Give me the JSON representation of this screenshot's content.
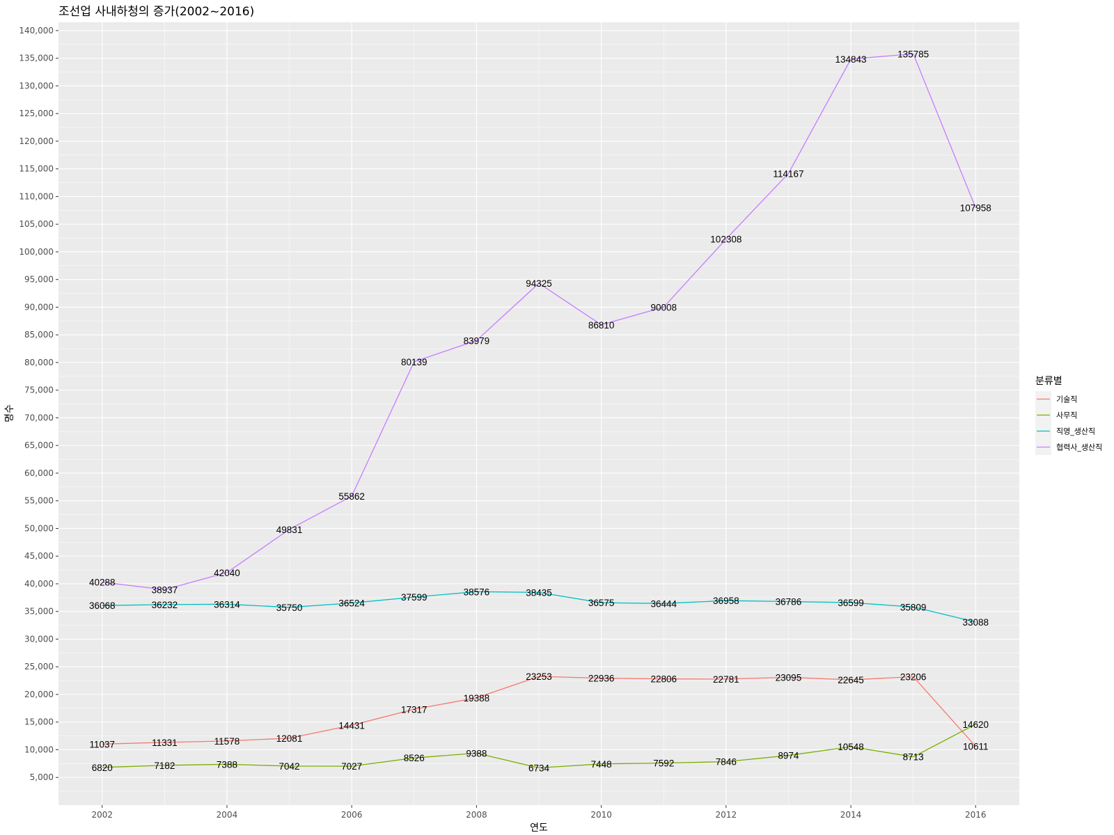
{
  "chart_data": {
    "type": "line",
    "title": "조선업 사내하청의 증가(2002~2016)",
    "xlabel": "연도",
    "ylabel": "명수",
    "x": [
      2002,
      2003,
      2004,
      2005,
      2006,
      2007,
      2008,
      2009,
      2010,
      2011,
      2012,
      2013,
      2014,
      2015,
      2016
    ],
    "xlim": [
      2001.3,
      2016.7
    ],
    "ylim": [
      0,
      141500
    ],
    "x_ticks": [
      "2002",
      "2004",
      "2006",
      "2008",
      "2010",
      "2012",
      "2014",
      "2016"
    ],
    "y_ticks": [
      "5,000",
      "10,000",
      "15,000",
      "20,000",
      "25,000",
      "30,000",
      "35,000",
      "40,000",
      "45,000",
      "50,000",
      "55,000",
      "60,000",
      "65,000",
      "70,000",
      "75,000",
      "80,000",
      "85,000",
      "90,000",
      "95,000",
      "100,000",
      "105,000",
      "110,000",
      "115,000",
      "120,000",
      "125,000",
      "130,000",
      "135,000",
      "140,000"
    ],
    "grid": true,
    "legend_title": "분류별",
    "legend_position": "right",
    "series": [
      {
        "name": "기술직",
        "color": "#F8766D",
        "values": [
          11037,
          11331,
          11578,
          12081,
          14431,
          17317,
          19388,
          23253,
          22936,
          22806,
          22781,
          23095,
          22645,
          23206,
          10611
        ]
      },
      {
        "name": "사무직",
        "color": "#7CAE00",
        "values": [
          6820,
          7182,
          7388,
          7042,
          7027,
          8526,
          9388,
          6734,
          7448,
          7592,
          7846,
          8974,
          10548,
          8713,
          14620
        ]
      },
      {
        "name": "직영_생산직",
        "color": "#00BFC4",
        "values": [
          36068,
          36232,
          36314,
          35750,
          36524,
          37599,
          38576,
          38435,
          36575,
          36444,
          36958,
          36786,
          36599,
          35809,
          33088
        ]
      },
      {
        "name": "협력사_생산직",
        "color": "#C77CFF",
        "values": [
          40288,
          38937,
          42040,
          49831,
          55862,
          80139,
          83979,
          94325,
          86810,
          90008,
          102308,
          114167,
          134843,
          135785,
          107958
        ]
      }
    ]
  }
}
